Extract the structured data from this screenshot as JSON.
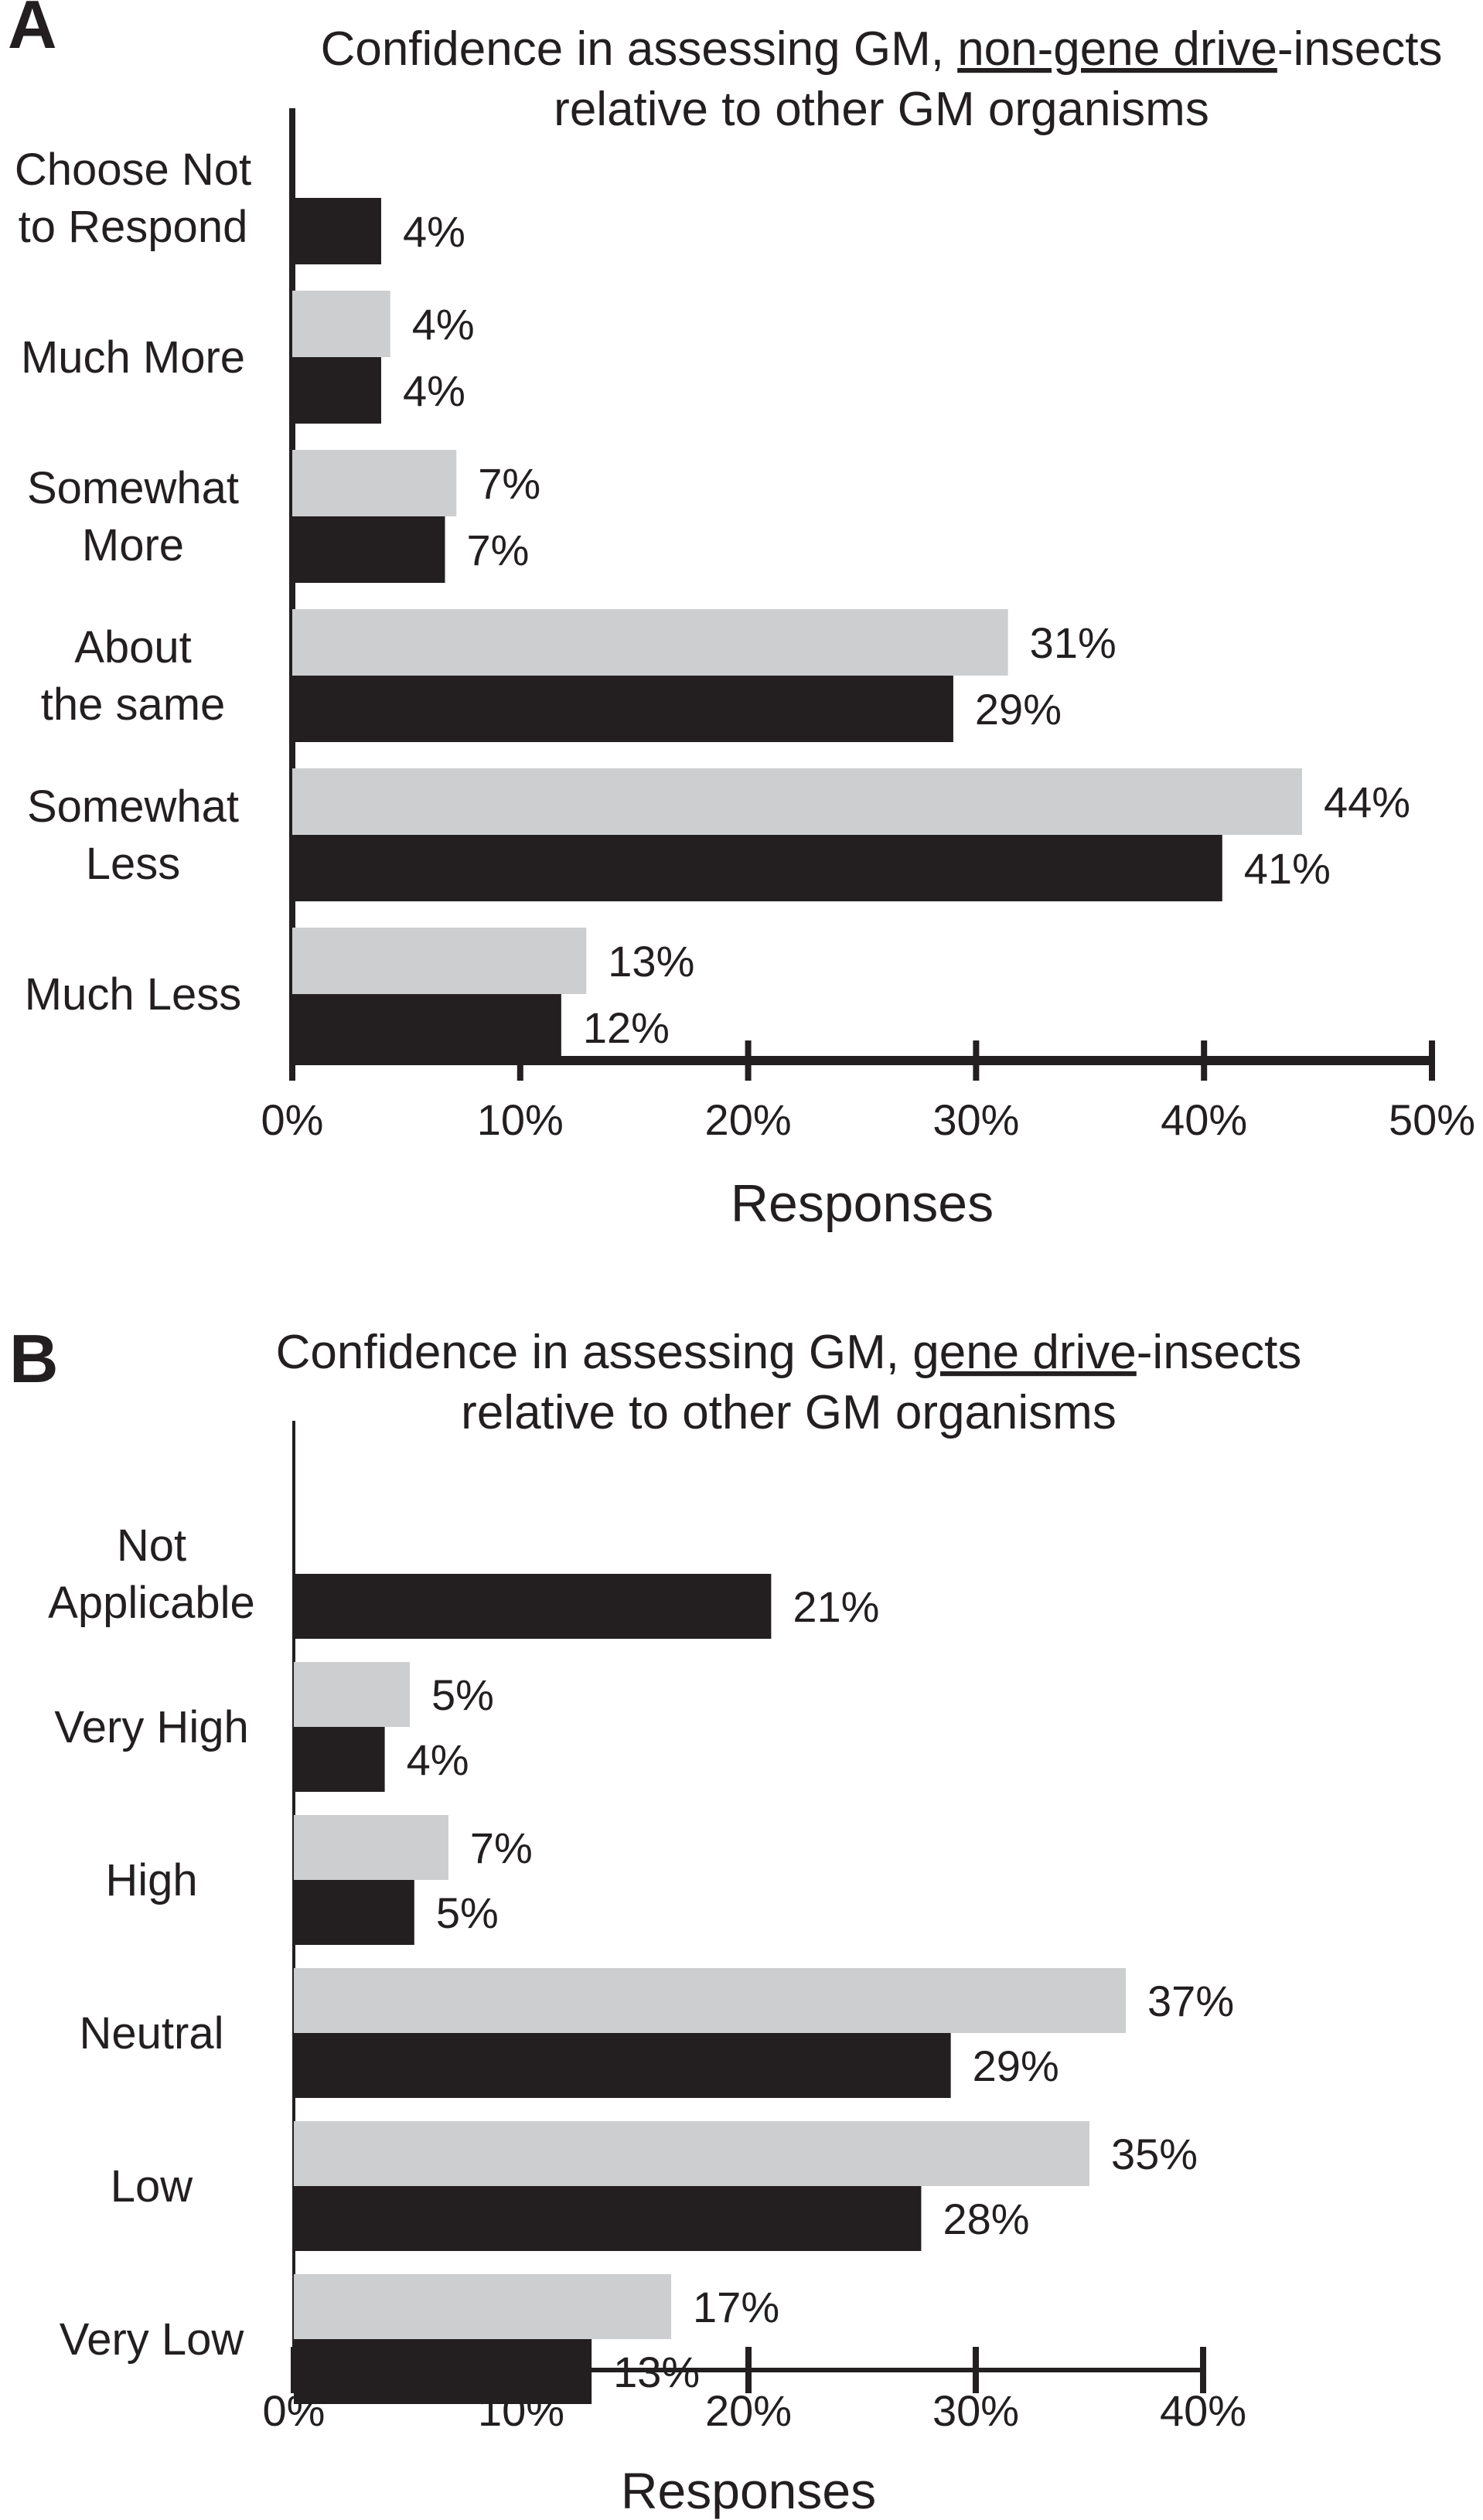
{
  "chart_data": [
    {
      "type": "bar",
      "orientation": "horizontal",
      "panel_label": "A",
      "title_parts": [
        "Confidence in assessing GM, ",
        "non-gene drive",
        "-insects"
      ],
      "title_underlined_part": "non-gene drive",
      "title_line2": "relative to other GM organisms",
      "xlabel": "Responses",
      "ylabel": "",
      "xlim": [
        0,
        50
      ],
      "x_ticks": [
        "0%",
        "10%",
        "20%",
        "30%",
        "40%",
        "50%"
      ],
      "x_tick_values": [
        0,
        10,
        20,
        30,
        40,
        50
      ],
      "categories": [
        [
          "Choose Not",
          "to Respond"
        ],
        [
          "Much More"
        ],
        [
          "Somewhat",
          "More"
        ],
        [
          "About",
          "the same"
        ],
        [
          "Somewhat",
          "Less"
        ],
        [
          "Much Less"
        ]
      ],
      "series": [
        {
          "name": "gray series",
          "color": "#cdcecf",
          "values": [
            null,
            4.3,
            7.2,
            31.4,
            44.3,
            12.9
          ],
          "labels": [
            "",
            "4%",
            "7%",
            "31%",
            "44%",
            "13%"
          ]
        },
        {
          "name": "black series",
          "color": "#231f20",
          "values": [
            3.9,
            3.9,
            6.7,
            29.0,
            40.8,
            11.8
          ],
          "labels": [
            "4%",
            "4%",
            "7%",
            "29%",
            "41%",
            "12%"
          ]
        }
      ],
      "legend": "none",
      "grid": false
    },
    {
      "type": "bar",
      "orientation": "horizontal",
      "panel_label": "B",
      "title_parts": [
        "Confidence in assessing GM, ",
        "gene drive",
        "-insects"
      ],
      "title_underlined_part": "gene drive",
      "title_line2": "relative to other GM organisms",
      "xlabel": "Responses",
      "ylabel": "",
      "xlim": [
        0,
        40
      ],
      "x_ticks": [
        "0%",
        "10%",
        "20%",
        "30%",
        "40%"
      ],
      "x_tick_values": [
        0,
        10,
        20,
        30,
        40
      ],
      "categories": [
        [
          "Not",
          "Applicable"
        ],
        [
          "Very High"
        ],
        [
          "High"
        ],
        [
          "Neutral"
        ],
        [
          "Low"
        ],
        [
          "Very Low"
        ]
      ],
      "series": [
        {
          "name": "gray series",
          "color": "#cdcecf",
          "values": [
            null,
            5.1,
            6.8,
            36.6,
            35.0,
            16.6
          ],
          "labels": [
            "",
            "5%",
            "7%",
            "37%",
            "35%",
            "17%"
          ]
        },
        {
          "name": "black series",
          "color": "#231f20",
          "values": [
            21.0,
            4.0,
            5.3,
            28.9,
            27.6,
            13.1
          ],
          "labels": [
            "21%",
            "4%",
            "5%",
            "29%",
            "28%",
            "13%"
          ]
        }
      ],
      "legend": "none",
      "grid": false
    }
  ]
}
